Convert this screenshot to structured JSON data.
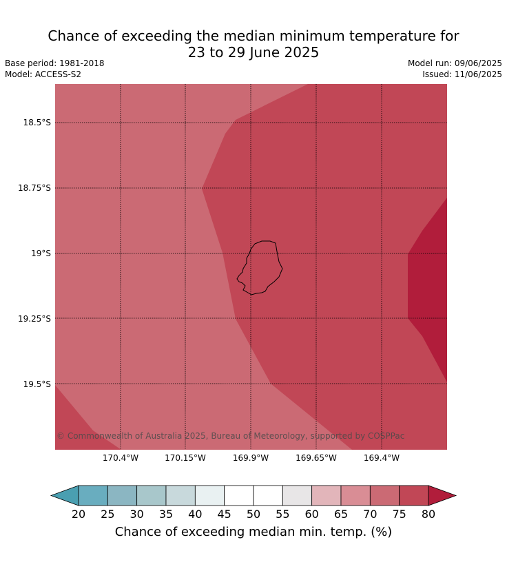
{
  "title": {
    "line1": "Chance of exceeding the median minimum temperature for",
    "line2": "23 to 29 June 2025"
  },
  "meta": {
    "base_period": "Base period: 1981-2018",
    "model": "Model: ACCESS-S2",
    "model_run": "Model run: 09/06/2025",
    "issued": "Issued: 11/06/2025"
  },
  "map": {
    "region": "Niue",
    "lat_labels": [
      "18.5°S",
      "18.75°S",
      "19°S",
      "19.25°S",
      "19.5°S"
    ],
    "lon_labels": [
      "170.4°W",
      "170.15°W",
      "169.9°W",
      "169.65°W",
      "169.4°W"
    ],
    "copyright": "© Commonwealth of Australia 2025, Bureau of Meteorology, supported by COSPPac",
    "zone_colors": {
      "70_75": "#cb6a74",
      "75_80": "#c14756",
      "80_plus": "#b11d3b"
    },
    "gridlines": true
  },
  "colorbar": {
    "label": "Chance of exceeding median min. temp. (%)",
    "ticks": [
      "20",
      "25",
      "30",
      "35",
      "40",
      "45",
      "50",
      "55",
      "60",
      "65",
      "70",
      "75",
      "80"
    ],
    "under_color": "#4a9fb1",
    "over_color": "#b11d3b",
    "colors": [
      "#69adbf",
      "#8bb6c2",
      "#a8c7cb",
      "#c8d9dc",
      "#e9f1f2",
      "#ffffff",
      "#ffffff",
      "#e8e6e7",
      "#e2b5ba",
      "#d98d95",
      "#cb6a74",
      "#c14756"
    ]
  }
}
